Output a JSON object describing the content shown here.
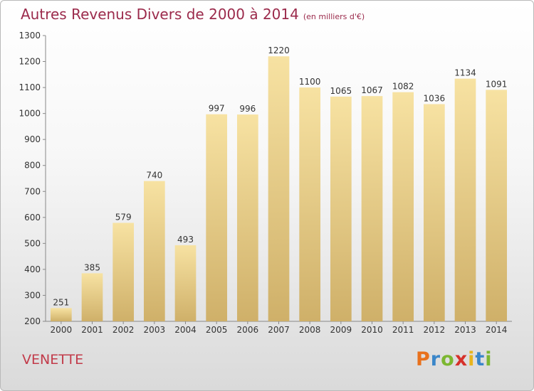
{
  "chart_data": {
    "type": "bar",
    "title": "Autres Revenus Divers de 2000 à 2014",
    "subtitle": "(en milliers d'€)",
    "categories": [
      "2000",
      "2001",
      "2002",
      "2003",
      "2004",
      "2005",
      "2006",
      "2007",
      "2008",
      "2009",
      "2010",
      "2011",
      "2012",
      "2013",
      "2014"
    ],
    "values": [
      251,
      385,
      579,
      740,
      493,
      997,
      996,
      1220,
      1100,
      1065,
      1067,
      1082,
      1036,
      1134,
      1091
    ],
    "ylim": [
      200,
      1300
    ],
    "yticks": [
      200,
      300,
      400,
      500,
      600,
      700,
      800,
      900,
      1000,
      1100,
      1200,
      1300
    ],
    "grid": false,
    "bar_color": "#e6cd84"
  },
  "footer": {
    "city": "VENETTE",
    "logo_text": "Proxiti",
    "logo_colors": [
      "#e8711d",
      "#3a86c9",
      "#7cb731",
      "#d6312b",
      "#e8b41d",
      "#3a86c9",
      "#7cb731"
    ]
  }
}
